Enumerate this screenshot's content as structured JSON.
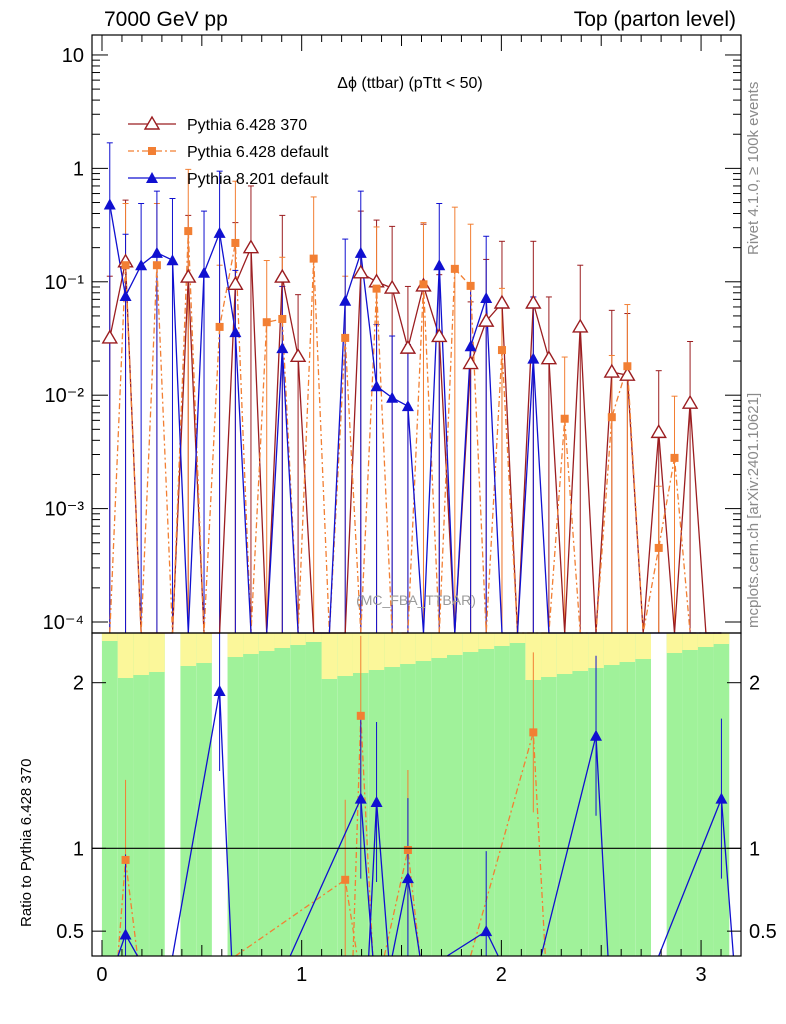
{
  "header": {
    "left": "7000 GeV pp",
    "right": "Top (parton level)"
  },
  "side_labels": {
    "rivet": "Rivet 4.1.0, ≥ 100k events",
    "mcplots": "mcplots.cern.ch [arXiv:2401.10621]"
  },
  "watermark": "(MC_FBA_TTBAR)",
  "colors": {
    "p6_370": "#9b1d20",
    "p6_default": "#f27f33",
    "p8": "#1010d0",
    "band_green": "#a0f29a",
    "band_yellow": "#fbf79a"
  },
  "chart_data": [
    {
      "type": "line",
      "title": "Δϕ (ttbar) (pTtt < 50)",
      "xlim": [
        -0.05,
        3.2
      ],
      "ylim": [
        8e-05,
        15
      ],
      "yscale": "log",
      "yticklabels": [
        "10",
        "1",
        "10⁻¹",
        "10⁻²",
        "10⁻³",
        "10⁻⁴"
      ],
      "legend_position": "top-left",
      "x": [
        0.039,
        0.118,
        0.196,
        0.275,
        0.353,
        0.432,
        0.511,
        0.589,
        0.668,
        0.746,
        0.825,
        0.903,
        0.982,
        1.06,
        1.139,
        1.218,
        1.296,
        1.375,
        1.453,
        1.532,
        1.61,
        1.689,
        1.767,
        1.846,
        1.924,
        2.003,
        2.081,
        2.16,
        2.238,
        2.317,
        2.395,
        2.474,
        2.553,
        2.631,
        2.71,
        2.788,
        2.867,
        2.945,
        3.024,
        3.102
      ],
      "series": [
        {
          "name": "Pythia 6.428 370",
          "values": [
            0.032,
            0.15,
            0,
            0,
            0,
            0.11,
            0,
            0,
            0.095,
            0.2,
            0,
            0.11,
            0.022,
            0,
            0,
            0,
            0.12,
            0.1,
            0.088,
            0.026,
            0.092,
            0.033,
            0,
            0.019,
            0.045,
            0.065,
            0,
            0.065,
            0.021,
            0,
            0.04,
            0,
            0.016,
            0.015,
            0,
            0.0047,
            0,
            0.0085,
            0,
            0
          ]
        },
        {
          "name": "Pythia 6.428 default",
          "values": [
            0,
            0.14,
            0,
            0.14,
            0,
            0.28,
            0,
            0.04,
            0.22,
            0,
            0.044,
            0.047,
            0,
            0.16,
            0,
            0.032,
            0,
            0.087,
            0,
            0,
            0.095,
            0,
            0.13,
            0.092,
            0,
            0.025,
            0,
            0,
            0,
            0.0062,
            0,
            0,
            0.0064,
            0.018,
            0,
            0.00045,
            0.0028,
            0,
            0,
            0
          ]
        },
        {
          "name": "Pythia 8.201 default",
          "values": [
            0.48,
            0.075,
            0.14,
            0.18,
            0.155,
            0,
            0.12,
            0.27,
            0.036,
            0,
            0,
            0.026,
            0,
            0,
            0,
            0.068,
            0.18,
            0.012,
            0.0095,
            0.008,
            0,
            0.14,
            0,
            0.027,
            0.072,
            0,
            0,
            0.021,
            0,
            0,
            0,
            0,
            0,
            0,
            0,
            0,
            0,
            0,
            0,
            0
          ]
        }
      ]
    },
    {
      "type": "line",
      "ylabel": "Ratio to Pythia 6.428 370",
      "xlim": [
        -0.05,
        3.2
      ],
      "ylim": [
        0.35,
        2.3
      ],
      "xticklabels": [
        "0",
        "1",
        "2",
        "3"
      ],
      "yticklabels": [
        "0.5",
        "1",
        "2"
      ],
      "reference_line": 1,
      "series": [
        {
          "name": "Pythia 6.428 default",
          "points": [
            [
              0.118,
              0.93
            ],
            [
              1.218,
              0.81
            ],
            [
              1.296,
              1.8
            ],
            [
              1.532,
              0.99
            ],
            [
              2.16,
              1.7
            ]
          ]
        },
        {
          "name": "Pythia 8.201 default",
          "points": [
            [
              0.118,
              0.48
            ],
            [
              0.589,
              1.95
            ],
            [
              1.296,
              1.3
            ],
            [
              1.375,
              1.28
            ],
            [
              1.532,
              0.82
            ],
            [
              1.924,
              0.5
            ],
            [
              2.474,
              1.68
            ],
            [
              3.102,
              1.3
            ]
          ]
        }
      ]
    }
  ]
}
